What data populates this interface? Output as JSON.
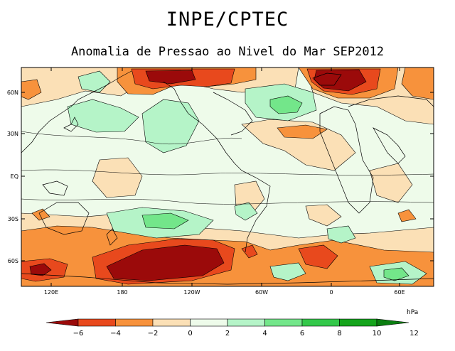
{
  "header": {
    "title": "INPE/CPTEC",
    "subtitle": "Anomalia de Pressao ao Nivel do Mar SEP2012"
  },
  "axes": {
    "lat_labels": [
      "60N",
      "30N",
      "EQ",
      "30S",
      "60S"
    ],
    "lon_labels": [
      "120E",
      "180",
      "120W",
      "60W",
      "0",
      "60E"
    ]
  },
  "colorbar": {
    "unit": "hPa",
    "tick_labels": [
      "−6",
      "−4",
      "−2",
      "0",
      "2",
      "4",
      "6",
      "8",
      "10",
      "12"
    ],
    "colors": [
      "#9b0a0a",
      "#e8491d",
      "#f7923c",
      "#fbe0b6",
      "#eefbea",
      "#b5f4c8",
      "#73e68a",
      "#33c84a",
      "#15a41c",
      "#0a7e10"
    ]
  },
  "map_data": {
    "type": "contour-map",
    "variable": "sea level pressure anomaly",
    "units": "hPa",
    "contour_interval": 2,
    "features": [
      {
        "kind": "negative-max",
        "region": "North Pacific / Bering",
        "approx_value": -6
      },
      {
        "kind": "negative-max",
        "region": "Greenland / North Atlantic",
        "approx_value": -6
      },
      {
        "kind": "negative-max",
        "region": "South Pacific (Amundsen-Bellingshausen)",
        "approx_value": -6
      },
      {
        "kind": "negative",
        "region": "Southern Indian Ocean near Australia",
        "approx_value": -6
      },
      {
        "kind": "positive",
        "region": "North Atlantic",
        "approx_value": 6
      },
      {
        "kind": "positive",
        "region": "Eastern Siberia / North Asia",
        "approx_value": 4
      },
      {
        "kind": "positive",
        "region": "South Atlantic / Southern Ocean",
        "approx_value": 6
      }
    ]
  }
}
